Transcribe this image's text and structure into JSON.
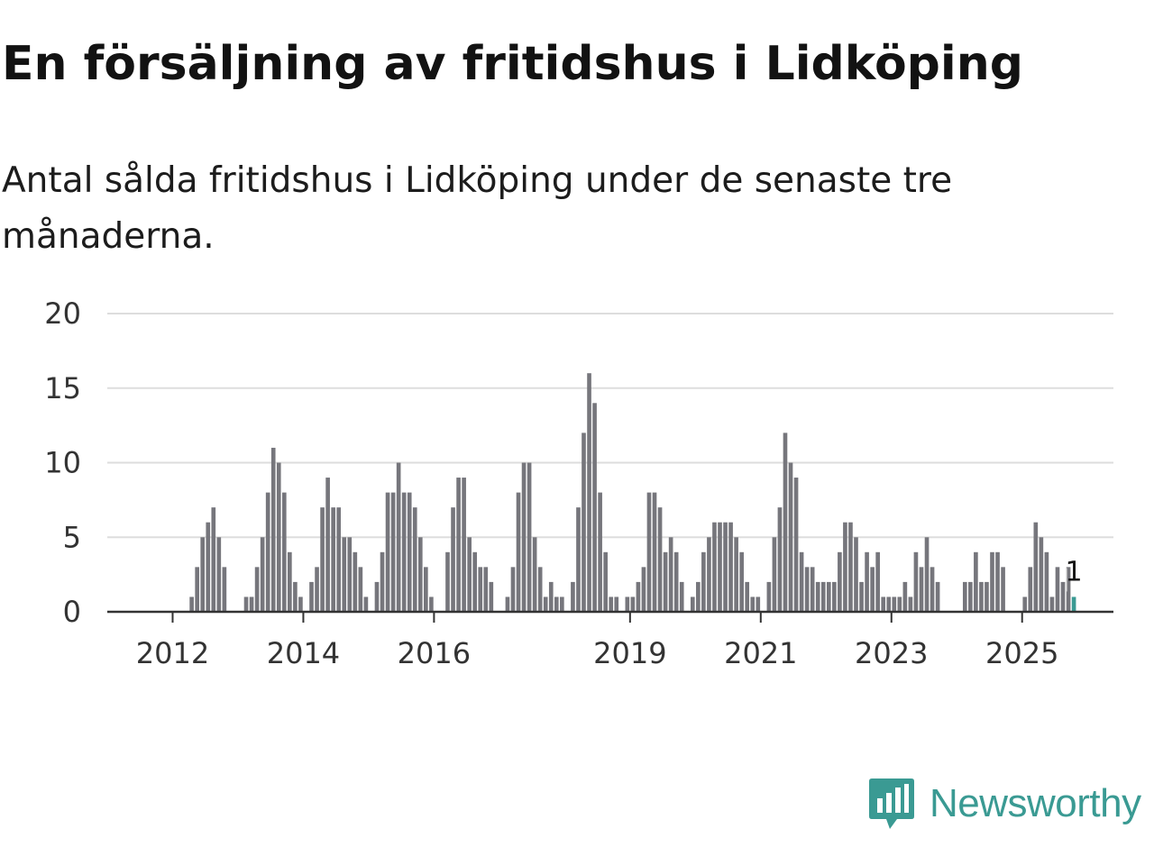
{
  "title": "En försäljning av fritidshus i Lidköping",
  "subtitle": "Antal sålda fritidshus i Lidköping under de senaste tre månaderna.",
  "brand": {
    "name": "Newsworthy",
    "color": "#3a9a93",
    "icon": "newsworthy-logo-icon"
  },
  "colors": {
    "bar": "#76767c",
    "highlight": "#3a9a93",
    "grid": "#dddddd",
    "axis": "#333333"
  },
  "chart_data": {
    "type": "bar",
    "title": "En försäljning av fritidshus i Lidköping",
    "subtitle": "Antal sålda fritidshus i Lidköping under de senaste tre månaderna.",
    "xlabel": "",
    "ylabel": "",
    "ylim": [
      0,
      20
    ],
    "yticks": [
      0,
      5,
      10,
      15,
      20
    ],
    "xticks": [
      "2012",
      "2014",
      "2016",
      "2019",
      "2021",
      "2023",
      "2025"
    ],
    "grid": true,
    "legend": "none",
    "start": "2011-01",
    "frequency": "monthly",
    "values": [
      0,
      0,
      0,
      0,
      0,
      0,
      0,
      0,
      0,
      0,
      0,
      0,
      0,
      0,
      0,
      1,
      3,
      5,
      6,
      7,
      5,
      3,
      0,
      0,
      0,
      1,
      1,
      3,
      5,
      8,
      11,
      10,
      8,
      4,
      2,
      1,
      0,
      2,
      3,
      7,
      9,
      7,
      7,
      5,
      5,
      4,
      3,
      1,
      0,
      2,
      4,
      8,
      8,
      10,
      8,
      8,
      7,
      5,
      3,
      1,
      0,
      0,
      4,
      7,
      9,
      9,
      5,
      4,
      3,
      3,
      2,
      0,
      0,
      1,
      3,
      8,
      10,
      10,
      5,
      3,
      1,
      2,
      1,
      1,
      0,
      2,
      7,
      12,
      16,
      14,
      8,
      4,
      1,
      1,
      0,
      1,
      1,
      2,
      3,
      8,
      8,
      7,
      4,
      5,
      4,
      2,
      0,
      1,
      2,
      4,
      5,
      6,
      6,
      6,
      6,
      5,
      4,
      2,
      1,
      1,
      0,
      2,
      5,
      7,
      12,
      10,
      9,
      4,
      3,
      3,
      2,
      2,
      2,
      2,
      4,
      6,
      6,
      5,
      2,
      4,
      3,
      4,
      1,
      1,
      1,
      1,
      2,
      1,
      4,
      3,
      5,
      3,
      2,
      0,
      0,
      0,
      0,
      2,
      2,
      4,
      2,
      2,
      4,
      4,
      3,
      0,
      0,
      0,
      1,
      3,
      6,
      5,
      4,
      1,
      3,
      2,
      3,
      1
    ],
    "highlight": {
      "date": "2025-10",
      "value": 1,
      "label": "1"
    }
  }
}
